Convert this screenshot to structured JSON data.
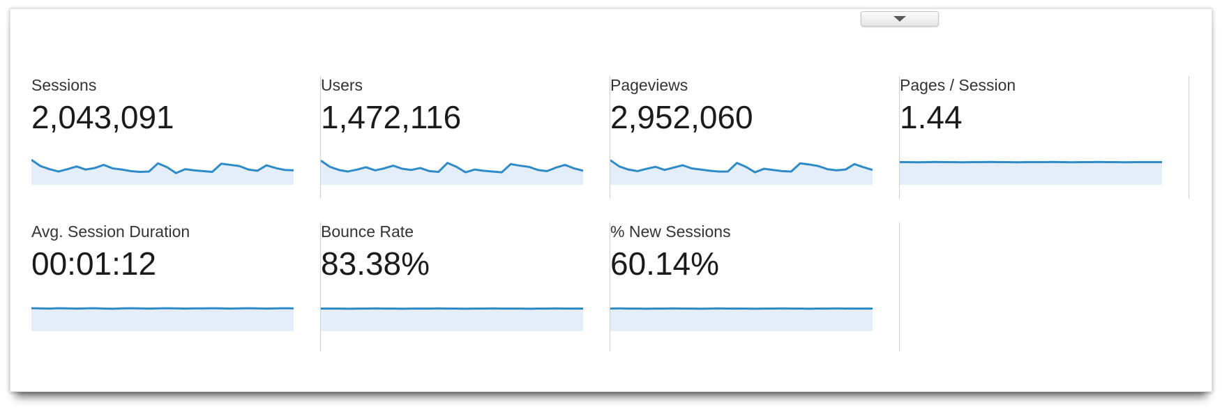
{
  "header": {
    "collapse_button": {
      "icon": "triangle-down"
    }
  },
  "colors": {
    "spark_line": "#2e8bc7",
    "spark_fill": "#e4eef8",
    "divider": "#cfcfcf",
    "label_text": "#333333",
    "value_text": "#1b1b1b"
  },
  "metrics": [
    {
      "id": "sessions",
      "label": "Sessions",
      "value": "2,043,091"
    },
    {
      "id": "users",
      "label": "Users",
      "value": "1,472,116"
    },
    {
      "id": "pageviews",
      "label": "Pageviews",
      "value": "2,952,060"
    },
    {
      "id": "pages-per-session",
      "label": "Pages / Session",
      "value": "1.44"
    },
    {
      "id": "avg-session-duration",
      "label": "Avg. Session Duration",
      "value": "00:01:12"
    },
    {
      "id": "bounce-rate",
      "label": "Bounce Rate",
      "value": "83.38%"
    },
    {
      "id": "new-sessions",
      "label": "% New Sessions",
      "value": "60.14%"
    }
  ],
  "chart_data": [
    {
      "type": "area",
      "metric": "Sessions",
      "title": "Sessions sparkline (values normalized 0-1, estimated from pixels; ~30 daily points, no axes shown)",
      "x": "time (daily)",
      "ylim": [
        0,
        1
      ],
      "grid": false,
      "legend": false,
      "values": [
        0.64,
        0.48,
        0.4,
        0.34,
        0.4,
        0.47,
        0.39,
        0.43,
        0.51,
        0.42,
        0.39,
        0.35,
        0.33,
        0.34,
        0.55,
        0.45,
        0.3,
        0.4,
        0.37,
        0.35,
        0.33,
        0.54,
        0.51,
        0.48,
        0.39,
        0.36,
        0.5,
        0.43,
        0.38,
        0.37
      ]
    },
    {
      "type": "area",
      "metric": "Users",
      "title": "Users sparkline (normalized, estimated)",
      "x": "time (daily)",
      "ylim": [
        0,
        1
      ],
      "grid": false,
      "legend": false,
      "values": [
        0.62,
        0.46,
        0.38,
        0.34,
        0.39,
        0.45,
        0.37,
        0.42,
        0.49,
        0.41,
        0.38,
        0.43,
        0.35,
        0.33,
        0.56,
        0.46,
        0.32,
        0.39,
        0.36,
        0.34,
        0.32,
        0.53,
        0.49,
        0.46,
        0.38,
        0.35,
        0.44,
        0.51,
        0.42,
        0.36
      ]
    },
    {
      "type": "area",
      "metric": "Pageviews",
      "title": "Pageviews sparkline (normalized, estimated)",
      "x": "time (daily)",
      "ylim": [
        0,
        1
      ],
      "grid": false,
      "legend": false,
      "values": [
        0.63,
        0.47,
        0.39,
        0.35,
        0.41,
        0.46,
        0.38,
        0.44,
        0.5,
        0.42,
        0.39,
        0.36,
        0.34,
        0.34,
        0.56,
        0.46,
        0.32,
        0.41,
        0.38,
        0.35,
        0.34,
        0.55,
        0.52,
        0.48,
        0.4,
        0.37,
        0.39,
        0.53,
        0.45,
        0.38
      ]
    },
    {
      "type": "area",
      "metric": "Pages / Session",
      "title": "Pages / Session sparkline (nearly flat)",
      "x": "time (daily)",
      "ylim": [
        0,
        1
      ],
      "grid": false,
      "legend": false,
      "values": [
        0.58,
        0.58,
        0.575,
        0.58,
        0.585,
        0.58,
        0.58,
        0.575,
        0.58,
        0.58,
        0.585,
        0.58,
        0.58,
        0.575,
        0.58,
        0.58,
        0.58,
        0.585,
        0.58,
        0.575,
        0.58,
        0.58,
        0.585,
        0.58,
        0.58,
        0.575,
        0.58,
        0.58,
        0.58,
        0.58
      ]
    },
    {
      "type": "area",
      "metric": "Avg. Session Duration",
      "title": "Avg. Session Duration sparkline (nearly flat)",
      "x": "time (daily)",
      "ylim": [
        0,
        1
      ],
      "grid": false,
      "legend": false,
      "values": [
        0.59,
        0.585,
        0.58,
        0.59,
        0.585,
        0.58,
        0.585,
        0.59,
        0.58,
        0.575,
        0.585,
        0.59,
        0.585,
        0.58,
        0.585,
        0.59,
        0.585,
        0.58,
        0.585,
        0.585,
        0.59,
        0.585,
        0.58,
        0.585,
        0.59,
        0.585,
        0.58,
        0.585,
        0.59,
        0.585
      ]
    },
    {
      "type": "area",
      "metric": "Bounce Rate",
      "title": "Bounce Rate sparkline (nearly flat)",
      "x": "time (daily)",
      "ylim": [
        0,
        1
      ],
      "grid": false,
      "legend": false,
      "values": [
        0.58,
        0.58,
        0.58,
        0.575,
        0.58,
        0.58,
        0.585,
        0.58,
        0.58,
        0.575,
        0.58,
        0.58,
        0.58,
        0.585,
        0.58,
        0.58,
        0.575,
        0.58,
        0.58,
        0.585,
        0.58,
        0.58,
        0.58,
        0.575,
        0.58,
        0.58,
        0.585,
        0.58,
        0.58,
        0.58
      ]
    },
    {
      "type": "area",
      "metric": "% New Sessions",
      "title": "% New Sessions sparkline (nearly flat)",
      "x": "time (daily)",
      "ylim": [
        0,
        1
      ],
      "grid": false,
      "legend": false,
      "values": [
        0.58,
        0.585,
        0.58,
        0.58,
        0.575,
        0.58,
        0.58,
        0.585,
        0.58,
        0.58,
        0.575,
        0.58,
        0.585,
        0.58,
        0.58,
        0.58,
        0.575,
        0.58,
        0.58,
        0.585,
        0.58,
        0.58,
        0.575,
        0.58,
        0.58,
        0.585,
        0.58,
        0.58,
        0.58,
        0.58
      ]
    }
  ]
}
